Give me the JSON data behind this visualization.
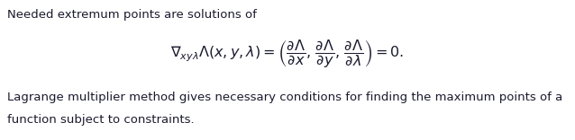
{
  "bg_color": "#ffffff",
  "text_color": "#1a1a2e",
  "line1": "Needed extremum points are solutions of",
  "equation": "\\nabla_{xy\\lambda}\\Lambda(x, y, \\lambda) = \\left(\\dfrac{\\partial\\Lambda}{\\partial x},\\, \\dfrac{\\partial\\Lambda}{\\partial y},\\, \\dfrac{\\partial\\Lambda}{\\partial\\lambda}\\right) = 0.",
  "line3": "Lagrange multiplier method gives necessary conditions for finding the maximum points of a",
  "line4": "function subject to constraints.",
  "font_size_text": 9.5,
  "font_size_eq": 11.5,
  "fig_width": 6.38,
  "fig_height": 1.56,
  "dpi": 100
}
